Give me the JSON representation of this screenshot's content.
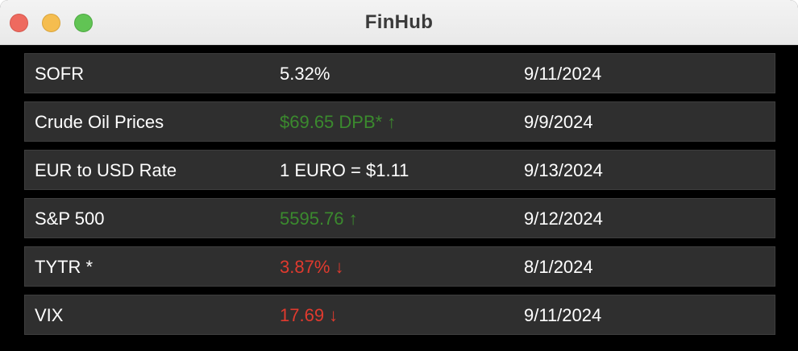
{
  "window": {
    "title": "FinHub"
  },
  "colors": {
    "up": "#3b8a2e",
    "down": "#e03a2e",
    "neutral": "#ffffff",
    "row_background": "#2f2f2f"
  },
  "rows": [
    {
      "name": "SOFR",
      "value": "5.32%",
      "date": "9/11/2024",
      "trend": "neutral"
    },
    {
      "name": "Crude Oil Prices",
      "value": "$69.65 DPB* ↑",
      "date": "9/9/2024",
      "trend": "up"
    },
    {
      "name": "EUR to USD Rate",
      "value": "1 EURO = $1.11",
      "date": "9/13/2024",
      "trend": "neutral"
    },
    {
      "name": "S&P 500",
      "value": "5595.76 ↑",
      "date": "9/12/2024",
      "trend": "up"
    },
    {
      "name": "TYTR *",
      "value": "3.87% ↓",
      "date": "8/1/2024",
      "trend": "down"
    },
    {
      "name": "VIX",
      "value": "17.69 ↓",
      "date": "9/11/2024",
      "trend": "down"
    }
  ]
}
